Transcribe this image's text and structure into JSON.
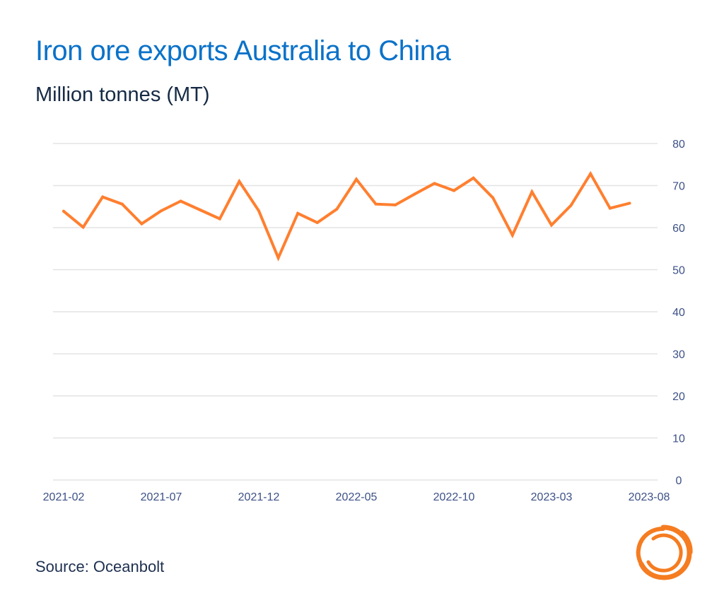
{
  "header": {
    "title": "Iron ore exports Australia to China",
    "subtitle": "Million tonnes (MT)"
  },
  "footer": {
    "source": "Source: Oceanbolt",
    "logo_icon": "oceanbolt-swirl-logo"
  },
  "colors": {
    "title": "#0a72c9",
    "line": "#ff7f2f",
    "grid": "#e3e3e3",
    "tick": "#3d5187",
    "logo": "#f57c20"
  },
  "chart_data": {
    "type": "line",
    "title": "Iron ore exports Australia to China",
    "subtitle": "Million tonnes (MT)",
    "xlabel": "",
    "ylabel": "Million tonnes (MT)",
    "ylim": [
      0,
      80
    ],
    "yticks": [
      0,
      10,
      20,
      30,
      40,
      50,
      60,
      70,
      80
    ],
    "y_axis_side": "right",
    "grid": true,
    "legend": "none",
    "xlim": [
      "2021-02",
      "2023-08"
    ],
    "xticks": [
      "2021-02",
      "2021-07",
      "2021-12",
      "2022-05",
      "2022-10",
      "2023-03",
      "2023-08"
    ],
    "x": [
      "2021-02",
      "2021-03",
      "2021-04",
      "2021-05",
      "2021-06",
      "2021-07",
      "2021-08",
      "2021-09",
      "2021-10",
      "2021-11",
      "2021-12",
      "2022-01",
      "2022-02",
      "2022-03",
      "2022-04",
      "2022-05",
      "2022-06",
      "2022-07",
      "2022-08",
      "2022-09",
      "2022-10",
      "2022-11",
      "2022-12",
      "2023-01",
      "2023-02",
      "2023-03",
      "2023-04",
      "2023-05",
      "2023-06",
      "2023-07"
    ],
    "series": [
      {
        "name": "Iron ore exports",
        "values": [
          63.9,
          60.1,
          67.3,
          65.6,
          60.9,
          64.0,
          66.3,
          64.2,
          62.1,
          71.0,
          64.0,
          52.8,
          63.4,
          61.2,
          64.4,
          71.5,
          65.6,
          65.4,
          68.0,
          70.5,
          68.8,
          71.8,
          67.1,
          58.2,
          68.5,
          60.6,
          65.3,
          72.8,
          64.6,
          65.8
        ]
      }
    ],
    "source": "Source: Oceanbolt"
  }
}
